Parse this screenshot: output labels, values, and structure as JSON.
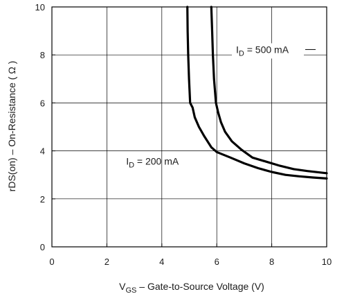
{
  "chart_data": {
    "type": "line",
    "xlabel": {
      "main": "V",
      "sub": "GS",
      "rest": " – Gate-to-Source Voltage (V)"
    },
    "ylabel": "rDS(on) – On-Resistance ( Ω )",
    "xlim": [
      0,
      10
    ],
    "ylim": [
      0,
      10
    ],
    "xticks": [
      0,
      2,
      4,
      6,
      8,
      10
    ],
    "yticks": [
      0,
      2,
      4,
      6,
      8,
      10
    ],
    "grid": true,
    "line_color": "#000000",
    "grid_color": "#000000",
    "series": [
      {
        "name": "I_D = 200 mA",
        "label": {
          "main": "I",
          "sub": "D",
          "rest": " = 200 mA"
        },
        "points": [
          [
            4.93,
            10.0
          ],
          [
            4.94,
            9.0
          ],
          [
            4.96,
            8.0
          ],
          [
            4.99,
            7.0
          ],
          [
            5.03,
            6.0
          ],
          [
            5.12,
            5.8
          ],
          [
            5.2,
            5.4
          ],
          [
            5.35,
            5.0
          ],
          [
            5.55,
            4.6
          ],
          [
            5.8,
            4.15
          ],
          [
            6.0,
            3.95
          ],
          [
            6.5,
            3.72
          ],
          [
            7.0,
            3.48
          ],
          [
            7.5,
            3.28
          ],
          [
            8.0,
            3.12
          ],
          [
            8.5,
            3.0
          ],
          [
            9.0,
            2.94
          ],
          [
            9.5,
            2.89
          ],
          [
            10.0,
            2.85
          ]
        ]
      },
      {
        "name": "I_D = 500 mA",
        "label": {
          "main": "I",
          "sub": "D",
          "rest": " = 500 mA"
        },
        "points": [
          [
            5.8,
            10.0
          ],
          [
            5.83,
            9.0
          ],
          [
            5.86,
            8.0
          ],
          [
            5.9,
            7.0
          ],
          [
            5.97,
            6.0
          ],
          [
            6.05,
            5.6
          ],
          [
            6.15,
            5.2
          ],
          [
            6.3,
            4.8
          ],
          [
            6.55,
            4.4
          ],
          [
            6.9,
            4.05
          ],
          [
            7.3,
            3.72
          ],
          [
            7.8,
            3.55
          ],
          [
            8.3,
            3.38
          ],
          [
            8.8,
            3.24
          ],
          [
            9.3,
            3.16
          ],
          [
            10.0,
            3.07
          ]
        ]
      }
    ],
    "annotations": [
      {
        "series": 1,
        "x": 6.7,
        "y": 8.08
      },
      {
        "series": 0,
        "x": 2.7,
        "y": 3.42
      }
    ]
  }
}
